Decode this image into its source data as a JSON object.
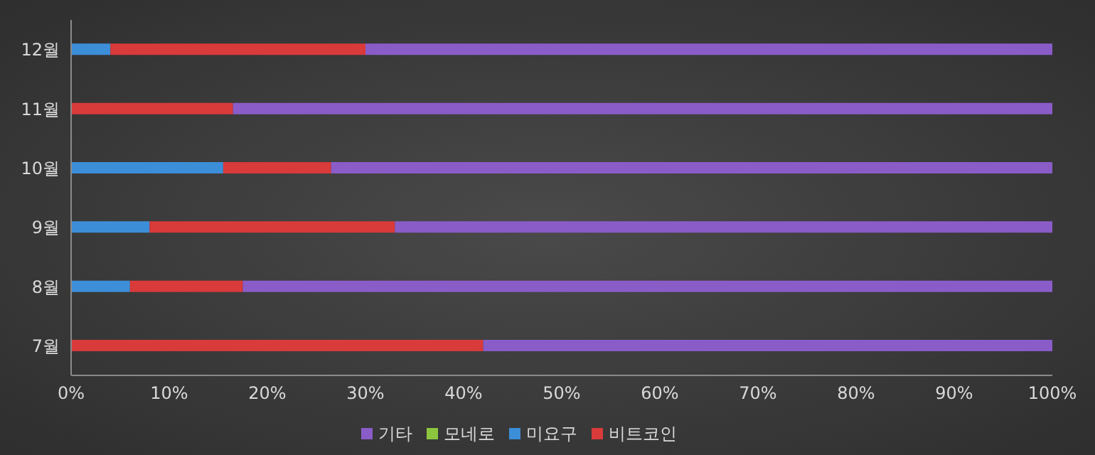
{
  "chart_data": {
    "type": "bar",
    "orientation": "horizontal",
    "stacked": true,
    "categories": [
      "12월",
      "11월",
      "10월",
      "9월",
      "8월",
      "7월"
    ],
    "series": [
      {
        "name": "미요구",
        "color": "#3d8ed8",
        "values": [
          4,
          0,
          15.5,
          8,
          6,
          0
        ]
      },
      {
        "name": "비트코인",
        "color": "#d93a3a",
        "values": [
          26,
          16.5,
          11,
          25,
          11.5,
          42
        ]
      },
      {
        "name": "모네로",
        "color": "#8cc63f",
        "values": [
          0,
          0,
          0,
          0,
          0,
          0
        ]
      },
      {
        "name": "기타",
        "color": "#8a5cc8",
        "values": [
          70,
          83.5,
          73.5,
          67,
          82.5,
          58
        ]
      }
    ],
    "xlim": [
      0,
      100
    ],
    "xticks": [
      {
        "value": 0,
        "label": "0%"
      },
      {
        "value": 10,
        "label": "10%"
      },
      {
        "value": 20,
        "label": "20%"
      },
      {
        "value": 30,
        "label": "30%"
      },
      {
        "value": 40,
        "label": "40%"
      },
      {
        "value": 50,
        "label": "50%"
      },
      {
        "value": 60,
        "label": "60%"
      },
      {
        "value": 70,
        "label": "70%"
      },
      {
        "value": 80,
        "label": "80%"
      },
      {
        "value": 90,
        "label": "90%"
      },
      {
        "value": 100,
        "label": "100%"
      }
    ],
    "legend": "bottom"
  }
}
